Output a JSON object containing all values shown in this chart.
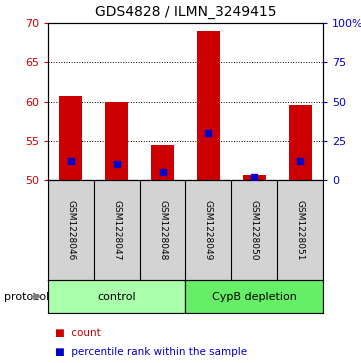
{
  "title": "GDS4828 / ILMN_3249415",
  "samples": [
    "GSM1228046",
    "GSM1228047",
    "GSM1228048",
    "GSM1228049",
    "GSM1228050",
    "GSM1228051"
  ],
  "counts": [
    60.7,
    60.0,
    54.4,
    69.0,
    50.6,
    59.6
  ],
  "percentiles": [
    12,
    10,
    5,
    30,
    2,
    12
  ],
  "baseline": 50,
  "ylim_left": [
    50,
    70
  ],
  "ylim_right": [
    0,
    100
  ],
  "yticks_left": [
    50,
    55,
    60,
    65,
    70
  ],
  "yticks_right": [
    0,
    25,
    50,
    75,
    100
  ],
  "group_control_label": "control",
  "group_cypb_label": "CypB depletion",
  "group_control_color": "#AAFFAA",
  "group_cypb_color": "#66EE66",
  "bar_color": "#CC0000",
  "dot_color": "#0000CC",
  "bar_width": 0.5,
  "bg_plot": "#FFFFFF",
  "bg_sample_box": "#D3D3D3",
  "legend_items": [
    "count",
    "percentile rank within the sample"
  ],
  "left_tick_color": "#CC0000",
  "right_tick_color": "#0000CC",
  "protocol_label": "protocol"
}
